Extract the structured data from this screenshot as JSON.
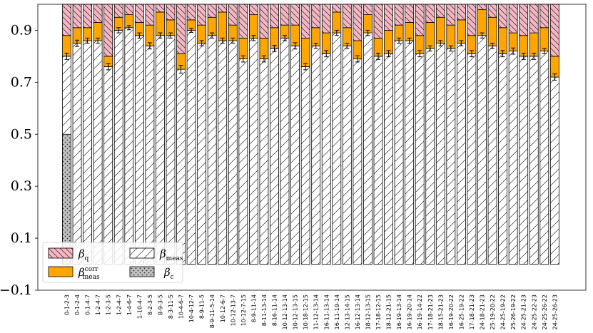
{
  "chart_data": {
    "type": "bar",
    "stacked": true,
    "ylim": [
      -0.1,
      1.0
    ],
    "yticks": [
      "−0.1",
      "0.1",
      "0.3",
      "0.5",
      "0.7",
      "0.9"
    ],
    "ytick_values": [
      -0.1,
      0.1,
      0.3,
      0.5,
      0.7,
      0.9
    ],
    "legend": {
      "position": "lower-left",
      "entries": [
        {
          "key": "q",
          "symbol": "β",
          "sub": "q",
          "sup": ""
        },
        {
          "key": "meas",
          "symbol": "β",
          "sub": "meas",
          "sup": ""
        },
        {
          "key": "corr",
          "symbol": "β",
          "sub": "meas",
          "sup": "corr"
        },
        {
          "key": "c",
          "symbol": "β",
          "sub": "c",
          "sup": ""
        }
      ]
    },
    "colors": {
      "q": "#f4b6c2",
      "corr": "#ffa500",
      "meas": "#ffffff",
      "c": "#c0c0c0",
      "edge": "#000000"
    },
    "categories": [
      "0-1-2-3",
      "0-1-2-4",
      "0-1-4-7",
      "1-2-4-7",
      "1-2-3-5",
      "1-2-4-7",
      "1-4-6-7",
      "1-10-4-7",
      "8-2-3-5",
      "8-9-3-5",
      "8-3-11-5",
      "10-4-6-7",
      "10-4-12-7",
      "8-9-11-5",
      "8-9-11-5-14",
      "10-12-6-7",
      "10-12-13-7",
      "10-12-7-15",
      "8-9-11-14",
      "8-11-13-14",
      "8-16-11-14",
      "10-12-13-14",
      "10-12-13-15",
      "10-18-12-15",
      "11-12-13-14",
      "16-11-13-14",
      "16-11-19-14",
      "12-13-14-15",
      "16-12-13-14",
      "18-12-13-15",
      "17-18-12-15",
      "18-12-21-15",
      "16-19-13-14",
      "16-19-20-14",
      "16-19-14-22",
      "17-18-21-23",
      "18-15-21-23",
      "16-19-20-22",
      "16-25-19-22",
      "17-18-21-23",
      "24-18-21-23",
      "25-19-20-22",
      "24-25-19-22",
      "25-26-19-22",
      "24-25-21-23",
      "24-25-22-23",
      "24-25-26-22",
      "24-25-26-23"
    ],
    "beta_c": [
      0.5,
      0,
      0,
      0,
      0,
      0,
      0,
      0,
      0,
      0,
      0,
      0,
      0,
      0,
      0,
      0,
      0,
      0,
      0,
      0,
      0,
      0,
      0,
      0,
      0,
      0,
      0,
      0,
      0,
      0,
      0,
      0,
      0,
      0,
      0,
      0,
      0,
      0,
      0,
      0,
      0,
      0,
      0,
      0,
      0,
      0,
      0,
      0
    ],
    "beta_meas": [
      0.8,
      0.85,
      0.86,
      0.86,
      0.76,
      0.9,
      0.91,
      0.88,
      0.84,
      0.88,
      0.88,
      0.75,
      0.9,
      0.85,
      0.88,
      0.86,
      0.86,
      0.79,
      0.87,
      0.79,
      0.83,
      0.87,
      0.84,
      0.76,
      0.84,
      0.81,
      0.89,
      0.84,
      0.79,
      0.89,
      0.8,
      0.81,
      0.86,
      0.86,
      0.81,
      0.83,
      0.85,
      0.83,
      0.85,
      0.81,
      0.88,
      0.84,
      0.81,
      0.82,
      0.8,
      0.8,
      0.82,
      0.72
    ],
    "meas_err": [
      0.012,
      0.012,
      0.01,
      0.01,
      0.012,
      0.01,
      0.008,
      0.01,
      0.012,
      0.01,
      0.01,
      0.015,
      0.008,
      0.01,
      0.01,
      0.01,
      0.01,
      0.012,
      0.01,
      0.012,
      0.012,
      0.01,
      0.012,
      0.012,
      0.01,
      0.012,
      0.01,
      0.01,
      0.012,
      0.01,
      0.012,
      0.012,
      0.01,
      0.01,
      0.012,
      0.01,
      0.01,
      0.01,
      0.01,
      0.012,
      0.01,
      0.01,
      0.012,
      0.012,
      0.012,
      0.012,
      0.01,
      0.012
    ],
    "beta_corr": [
      0.08,
      0.06,
      0.05,
      0.07,
      0.04,
      0.05,
      0.05,
      0.05,
      0.08,
      0.09,
      0.06,
      0.06,
      0.04,
      0.07,
      0.07,
      0.11,
      0.06,
      0.08,
      0.09,
      0.08,
      0.08,
      0.05,
      0.08,
      0.11,
      0.07,
      0.08,
      0.08,
      0.07,
      0.07,
      0.07,
      0.07,
      0.09,
      0.06,
      0.07,
      0.07,
      0.1,
      0.1,
      0.09,
      0.09,
      0.07,
      0.1,
      0.11,
      0.1,
      0.07,
      0.08,
      0.09,
      0.09,
      0.08
    ],
    "total": 1.0
  }
}
